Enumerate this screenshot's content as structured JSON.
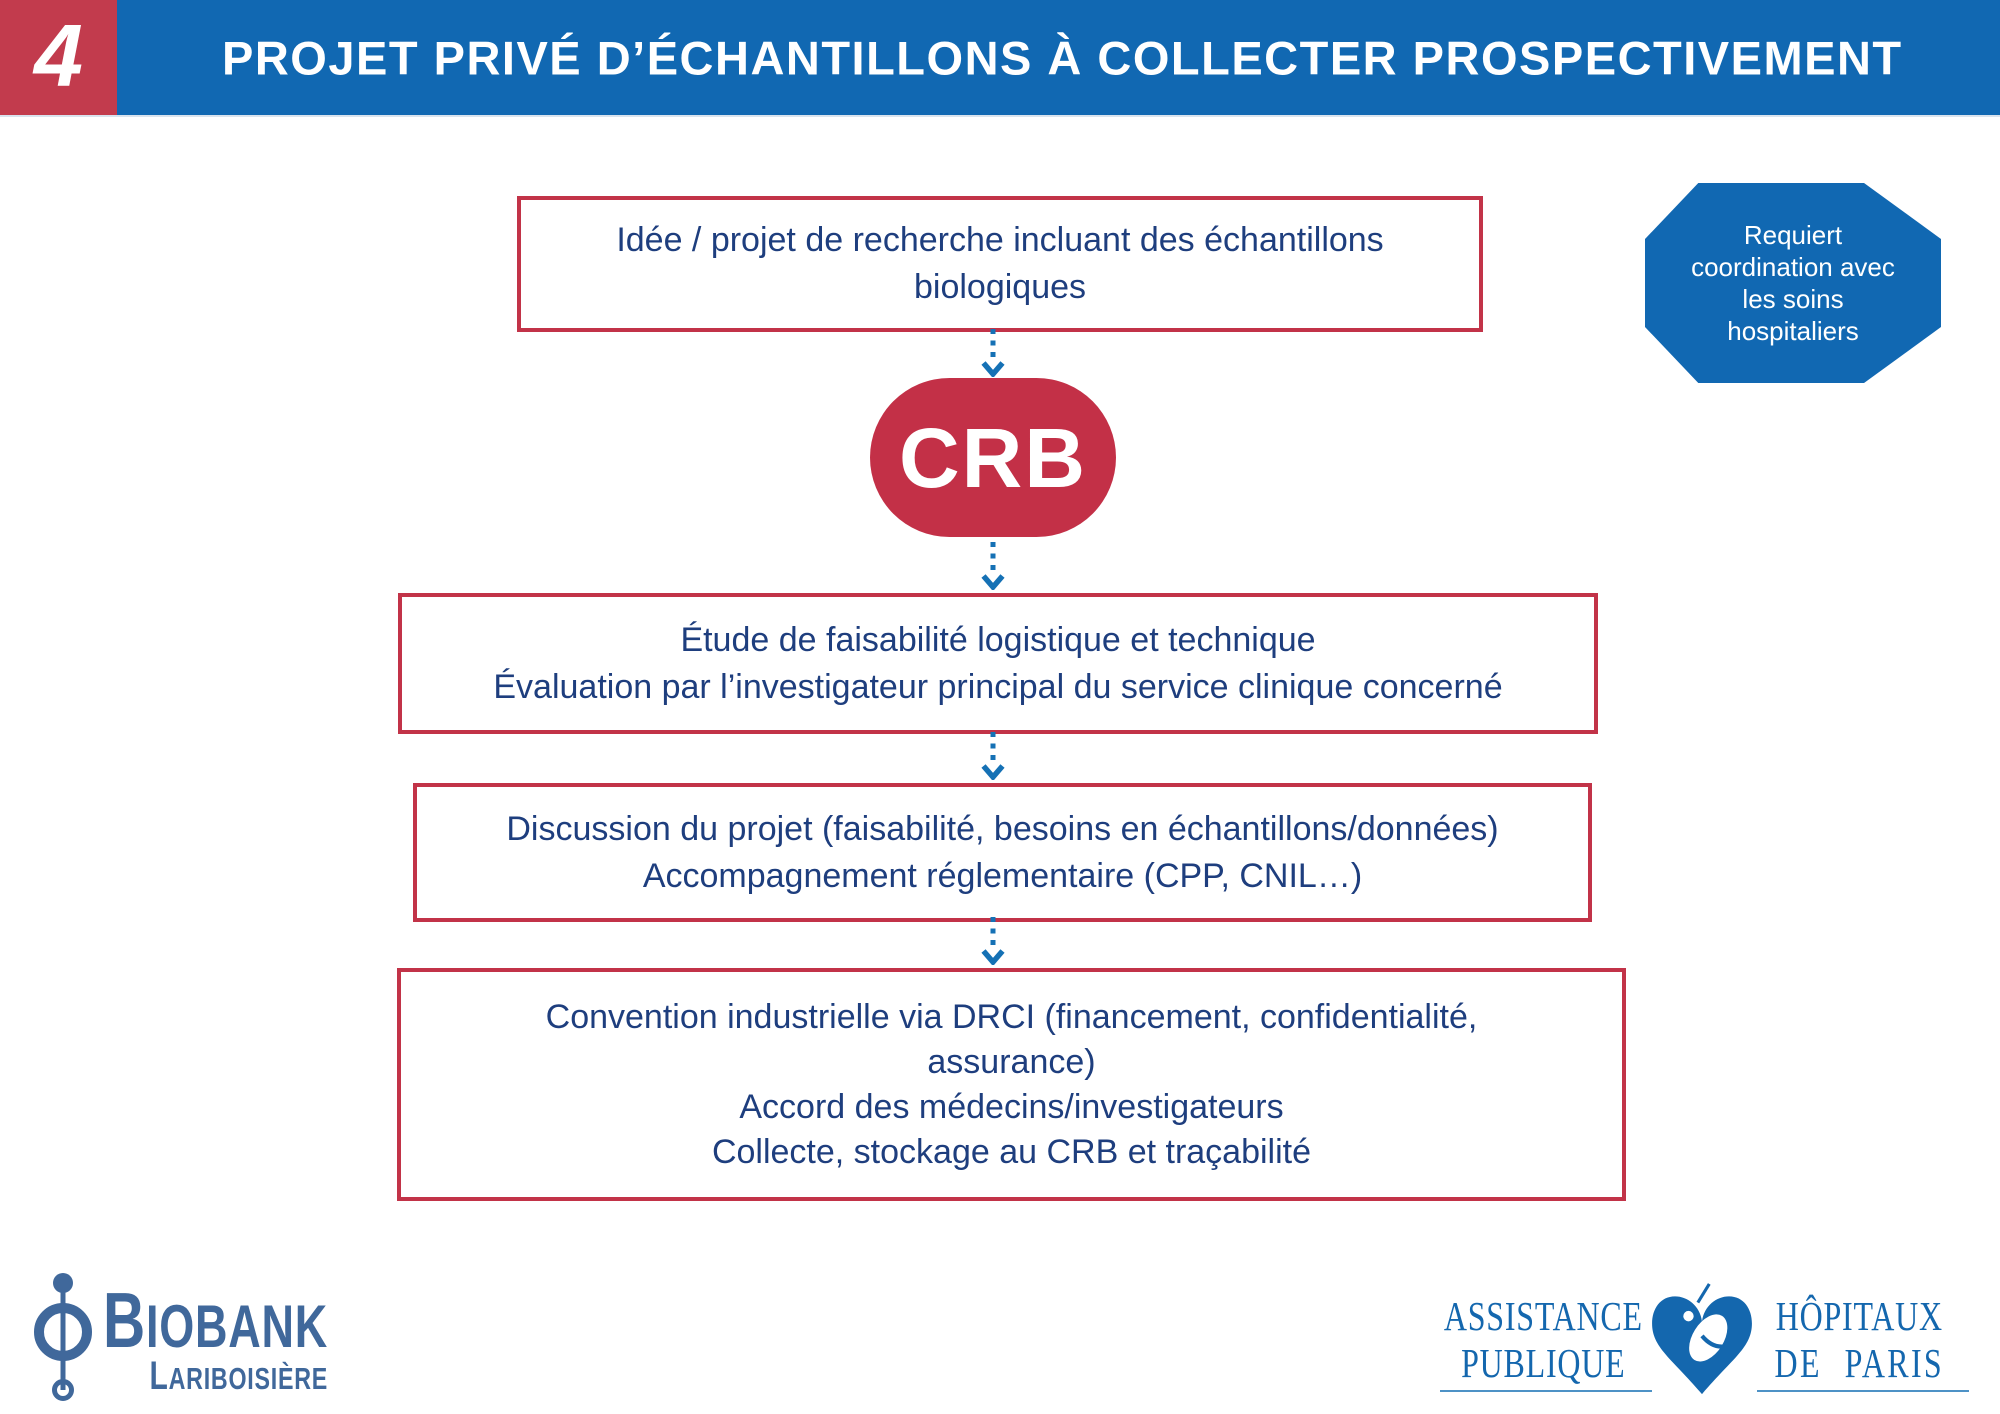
{
  "header": {
    "number": "4",
    "title": "PROJET PRIVÉ D’ÉCHANTILLONS À COLLECTER PROSPECTIVEMENT"
  },
  "callout": {
    "lines": [
      "Requiert",
      "coordination avec",
      "les soins",
      "hospitaliers"
    ]
  },
  "flow": {
    "box_idea": {
      "lines": [
        "Idée / projet de recherche incluant des échantillons",
        "biologiques"
      ]
    },
    "crb_label": "CRB",
    "box_feasibility": {
      "lines": [
        "Étude de faisabilité logistique et technique",
        "Évaluation par l’investigateur principal du service clinique concerné"
      ]
    },
    "box_discussion": {
      "lines": [
        "Discussion du projet (faisabilité, besoins en échantillons/données)",
        "Accompagnement réglementaire (CPP, CNIL…)"
      ]
    },
    "box_convention": {
      "lines": [
        "Convention industrielle via DRCI (financement, confidentialité,",
        "assurance)",
        "Accord des médecins/investigateurs",
        "Collecte, stockage au CRB et traçabilité"
      ]
    }
  },
  "footer": {
    "biobank": {
      "main": "BIOBANK",
      "sub": "LARIBOISIÈRE"
    },
    "aphp": {
      "left_lines": [
        "ASSISTANCE",
        "PUBLIQUE"
      ],
      "right_lines": [
        "HÔPITAUX",
        "DE PARIS"
      ]
    }
  },
  "colors": {
    "banner_blue": "#1168B2",
    "accent_red": "#C23B4D",
    "box_border_red": "#C23348",
    "crb_red": "#C33047",
    "text_navy": "#1E3E7E",
    "arrow_blue": "#1571B5",
    "biobank_blue": "#40689B",
    "aphp_blue": "#1467AE"
  }
}
